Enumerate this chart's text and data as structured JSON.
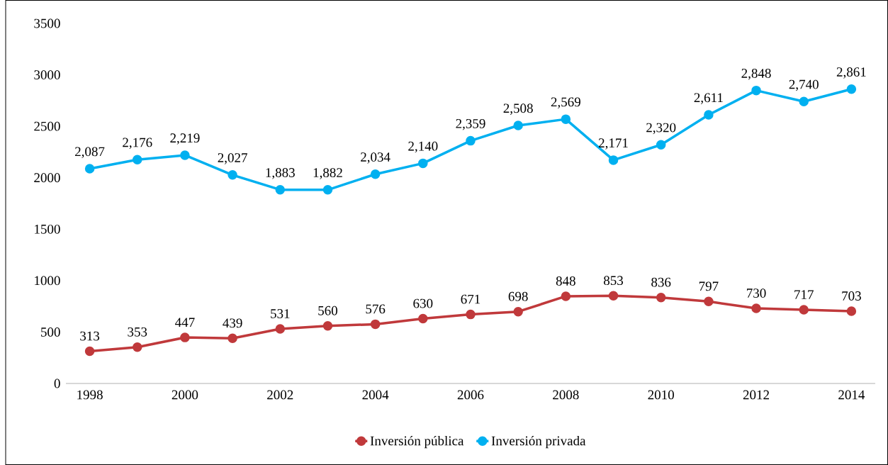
{
  "chart_data": {
    "type": "line",
    "x": [
      1998,
      1999,
      2000,
      2001,
      2002,
      2003,
      2004,
      2005,
      2006,
      2007,
      2008,
      2009,
      2010,
      2011,
      2012,
      2013,
      2014
    ],
    "series": [
      {
        "name": "Inversión pública",
        "color": "#c0393b",
        "values": [
          313,
          353,
          447,
          439,
          531,
          560,
          576,
          630,
          671,
          698,
          848,
          853,
          836,
          797,
          730,
          717,
          703
        ],
        "value_labels": [
          "313",
          "353",
          "447",
          "439",
          "531",
          "560",
          "576",
          "630",
          "671",
          "698",
          "848",
          "853",
          "836",
          "797",
          "730",
          "717",
          "703"
        ]
      },
      {
        "name": "Inversión privada",
        "color": "#00b0f0",
        "values": [
          2087,
          2176,
          2219,
          2027,
          1883,
          1882,
          2034,
          2140,
          2359,
          2508,
          2569,
          2171,
          2320,
          2611,
          2848,
          2740,
          2861
        ],
        "value_labels": [
          "2,087",
          "2,176",
          "2,219",
          "2,027",
          "1,883",
          "1,882",
          "2,034",
          "2,140",
          "2,359",
          "2,508",
          "2,569",
          "2,171",
          "2,320",
          "2,611",
          "2,848",
          "2,740",
          "2,861"
        ]
      }
    ],
    "xlim": [
      1997.5,
      2014.5
    ],
    "xticks": [
      1998,
      2000,
      2002,
      2004,
      2006,
      2008,
      2010,
      2012,
      2014
    ],
    "ylim": [
      0,
      3500
    ],
    "yticks": [
      0,
      500,
      1000,
      1500,
      2000,
      2500,
      3000,
      3500
    ],
    "grid": false,
    "legend": "bottom",
    "marker": "circle",
    "line_style": "solid"
  }
}
